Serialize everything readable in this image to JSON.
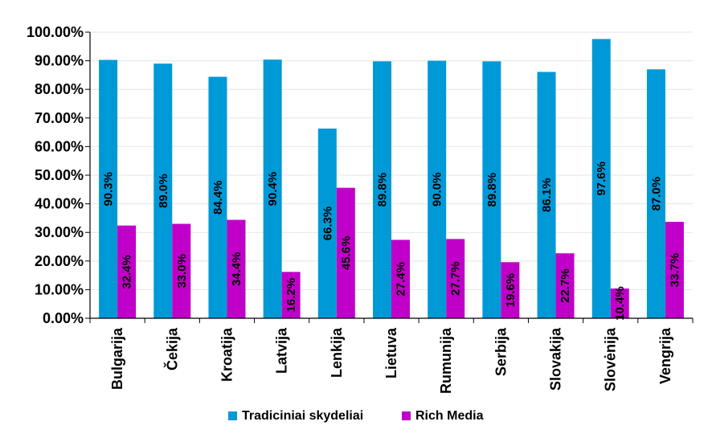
{
  "chart_data": {
    "type": "bar",
    "categories": [
      "Bulgarija",
      "Čekija",
      "Kroatija",
      "Latvija",
      "Lenkija",
      "Lietuva",
      "Rumunija",
      "Serbija",
      "Slovakija",
      "Slovėnija",
      "Vengrija"
    ],
    "series": [
      {
        "name": "Tradiciniai skydeliai",
        "color": "#0099d8",
        "values": [
          90.3,
          89.0,
          84.4,
          90.4,
          66.3,
          89.8,
          90.0,
          89.8,
          86.1,
          97.6,
          87.0
        ],
        "labels": [
          "90.3%",
          "89.0%",
          "84.4%",
          "90.4%",
          "66.3%",
          "89.8%",
          "90.0%",
          "89.8%",
          "86.1%",
          "97.6%",
          "87.0%"
        ]
      },
      {
        "name": "Rich Media",
        "color": "#c000c8",
        "values": [
          32.4,
          33.0,
          34.4,
          16.2,
          45.6,
          27.4,
          27.7,
          19.6,
          22.7,
          10.4,
          33.7
        ],
        "labels": [
          "32.4%",
          "33.0%",
          "34.4%",
          "16.2%",
          "45.6%",
          "27.4%",
          "27.7%",
          "19.6%",
          "22.7%",
          "10.4%",
          "33.7%"
        ]
      }
    ],
    "yticks": [
      "0.00%",
      "10.00%",
      "20.00%",
      "30.00%",
      "40.00%",
      "50.00%",
      "60.00%",
      "70.00%",
      "80.00%",
      "90.00%",
      "100.00%"
    ],
    "ylim": [
      0,
      100
    ],
    "grid": true,
    "legend_position": "bottom"
  }
}
